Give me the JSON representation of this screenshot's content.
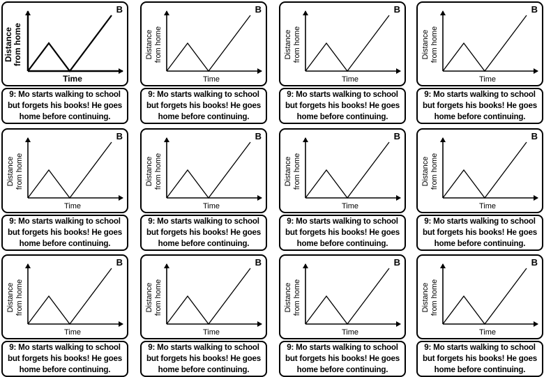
{
  "cards": {
    "letter": "B",
    "caption_line1": "9: Mo starts walking to school",
    "caption_line2": "but forgets his books! He goes",
    "caption_line3": "home before continuing.",
    "y_label_line1": "Distance",
    "y_label_line2": "from home",
    "x_label": "Time"
  },
  "chart_data": {
    "type": "line",
    "x": [
      0,
      1,
      2,
      4
    ],
    "y": [
      0,
      1,
      0,
      2
    ],
    "xlabel": "Time",
    "ylabel": "Distance from home",
    "grid": false
  },
  "grid_layout": {
    "rows": 3,
    "columns": 4
  }
}
